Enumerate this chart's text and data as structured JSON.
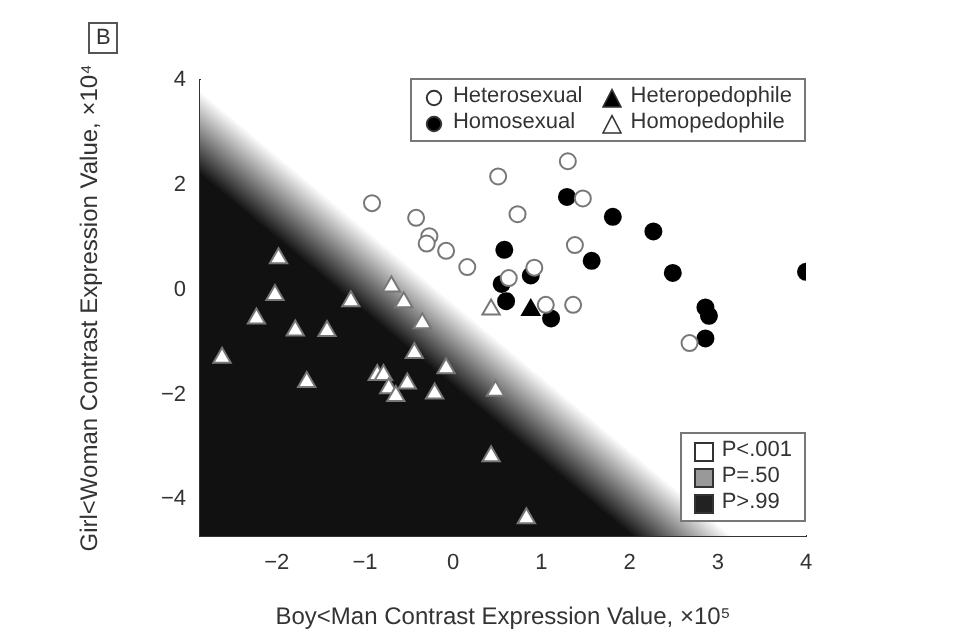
{
  "chart_data": {
    "type": "scatter",
    "title": "B",
    "xlabel": "Boy<Man Contrast Expression Value, ×10⁵",
    "ylabel": "Girl<Woman Contrast Expression Value, ×10⁴",
    "xlim": [
      -2.87,
      4
    ],
    "xticks": [
      -2,
      -1,
      0,
      1,
      2,
      3,
      4
    ],
    "ylim": [
      -4.7,
      4
    ],
    "yticks": [
      -4,
      -2,
      0,
      2,
      4
    ],
    "grid": false,
    "legend": "top right",
    "annotations": [
      "P<.001",
      "P=.50",
      "P>.99"
    ],
    "series": [
      {
        "name": "Heterosexual",
        "color": "#ffffff",
        "marker": "circle",
        "x": [
          -0.92,
          -0.42,
          -0.27,
          -0.3,
          -0.08,
          0.16,
          0.51,
          0.73,
          1.3,
          1.47,
          1.38,
          0.92,
          0.63,
          1.05,
          1.36,
          2.68
        ],
        "values": [
          1.65,
          1.37,
          1.02,
          0.88,
          0.74,
          0.43,
          2.16,
          1.44,
          2.45,
          1.74,
          0.85,
          0.42,
          0.22,
          -0.29,
          -0.29,
          -1.02
        ]
      },
      {
        "name": "Homosexual",
        "color": "#000000",
        "marker": "circle",
        "x": [
          1.29,
          1.81,
          2.27,
          0.58,
          1.57,
          2.49,
          4.0,
          0.88,
          0.55,
          0.6,
          1.11,
          2.86,
          2.9,
          2.86
        ],
        "values": [
          1.77,
          1.39,
          1.11,
          0.76,
          0.55,
          0.32,
          0.34,
          0.27,
          0.11,
          -0.22,
          -0.55,
          -0.34,
          -0.5,
          -0.93
        ]
      },
      {
        "name": "Heteropedophile",
        "color": "#000000",
        "marker": "triangle",
        "x": [
          0.88
        ],
        "values": [
          -0.39
        ]
      },
      {
        "name": "Homopedophile",
        "color": "#ffffff",
        "marker": "triangle",
        "x": [
          -1.98,
          -2.02,
          -2.23,
          -1.79,
          -1.43,
          -1.16,
          -2.62,
          -1.66,
          -0.7,
          -0.56,
          -0.35,
          -0.44,
          -0.08,
          -0.86,
          -0.79,
          -0.73,
          -0.65,
          -0.52,
          -0.21,
          0.48,
          0.43,
          0.43,
          0.83
        ],
        "values": [
          0.6,
          -0.1,
          -0.55,
          -0.78,
          -0.79,
          -0.22,
          -1.3,
          -1.76,
          0.06,
          -0.24,
          -0.64,
          -1.21,
          -1.5,
          -1.63,
          -1.63,
          -1.88,
          -2.03,
          -1.79,
          -1.98,
          -1.93,
          -0.38,
          -3.18,
          -4.36
        ]
      }
    ]
  }
}
